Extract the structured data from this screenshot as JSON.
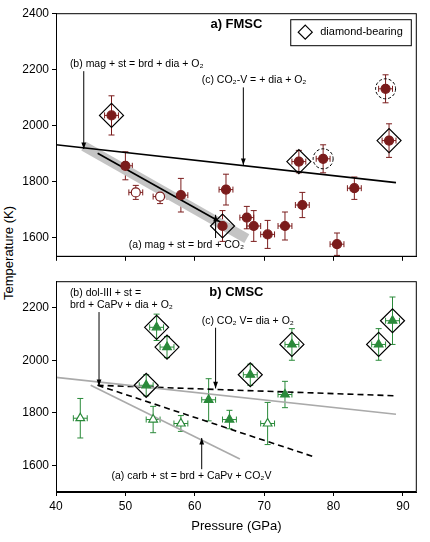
{
  "chart_data": [
    {
      "type": "scatter",
      "title": "a) FMSC",
      "y_label": "Temperature (K)",
      "xlim": [
        40,
        92
      ],
      "xticks": [
        40,
        50,
        60,
        70,
        80,
        90
      ],
      "ylim": [
        1530,
        2400
      ],
      "yticks": [
        1600,
        1800,
        2000,
        2200,
        2400
      ],
      "grid": false,
      "tick_labels": "y",
      "legend": "upper right",
      "series": [
        {
          "type": "line",
          "line_style": "band",
          "color": "#c4c4c4",
          "x": [
            44,
            67.5
          ],
          "y": [
            1925,
            1595
          ]
        },
        {
          "type": "line",
          "line_style": "solid",
          "color": "#000000",
          "x": [
            46,
            64
          ],
          "y": [
            1900,
            1650
          ]
        },
        {
          "type": "line",
          "line_style": "solid",
          "color": "#000000",
          "x": [
            40,
            89
          ],
          "y": [
            1930,
            1795
          ]
        },
        {
          "name": "diamond-bearing",
          "marker": "diamond-open",
          "color": "#000000",
          "x": [
            48,
            64,
            75,
            88
          ],
          "y": [
            2035,
            1640,
            1870,
            1945
          ]
        },
        {
          "marker": "circle-dashed",
          "color": "#000000",
          "x": [
            78.5,
            87.5
          ],
          "y": [
            1880,
            2130
          ]
        },
        {
          "marker": "circle",
          "color": "#7b1c1c",
          "x": [
            48,
            50,
            58,
            64,
            64.5,
            67.5,
            68.5,
            70.5,
            73,
            75,
            75.5,
            78.5,
            80.5,
            83,
            87.5,
            88
          ],
          "y": [
            2035,
            1855,
            1750,
            1640,
            1770,
            1670,
            1640,
            1610,
            1640,
            1870,
            1715,
            1880,
            1575,
            1775,
            2130,
            1945
          ],
          "xerr": [
            1,
            1,
            1,
            1,
            1,
            1,
            1,
            1,
            1,
            1,
            1,
            1,
            1,
            1,
            1,
            1
          ],
          "yerr": [
            70,
            50,
            60,
            55,
            55,
            40,
            55,
            50,
            50,
            40,
            45,
            50,
            40,
            40,
            50,
            60
          ]
        },
        {
          "marker": "circle-open",
          "color": "#7b1c1c",
          "x": [
            51.5,
            55
          ],
          "y": [
            1760,
            1745
          ],
          "xerr": [
            1,
            1
          ],
          "yerr": [
            25,
            25
          ]
        }
      ],
      "annotations": [
        {
          "text": "(b) mag + st = brd + dia + O₂",
          "x": 42,
          "y": 2218,
          "arrow_x": 44,
          "arrow_y": 1915
        },
        {
          "text": "(c) CO₂-V = + dia + O₂",
          "x": 61,
          "y": 2160,
          "arrow_x": 67,
          "arrow_y": 1858
        },
        {
          "text": "(a) mag + st = brd + CO₂",
          "x": 50.5,
          "y": 1572,
          "arrow_x": 63,
          "arrow_y": 1680
        }
      ]
    },
    {
      "type": "scatter",
      "title": "b) CMSC",
      "x_label": "Pressure (GPa)",
      "xlim": [
        40,
        92
      ],
      "xticks": [
        40,
        50,
        60,
        70,
        80,
        90
      ],
      "ylim": [
        1500,
        2300
      ],
      "yticks": [
        1600,
        1800,
        2000,
        2200
      ],
      "grid": false,
      "series": [
        {
          "type": "line",
          "line_style": "solid",
          "color": "#aaaaaa",
          "x": [
            40,
            89
          ],
          "y": [
            1935,
            1795
          ]
        },
        {
          "type": "line",
          "line_style": "solid",
          "color": "#aaaaaa",
          "x": [
            45,
            66.5
          ],
          "y": [
            1905,
            1625
          ]
        },
        {
          "type": "line",
          "line_style": "dashed",
          "color": "#000000",
          "x": [
            46,
            89
          ],
          "y": [
            1905,
            1865
          ]
        },
        {
          "type": "line",
          "line_style": "dashed",
          "color": "#000000",
          "x": [
            46,
            77
          ],
          "y": [
            1905,
            1635
          ]
        },
        {
          "marker": "diamond-open",
          "color": "#000000",
          "x": [
            53,
            54.5,
            56,
            68,
            74,
            86.5,
            88.5
          ],
          "y": [
            1905,
            2125,
            2050,
            1945,
            2060,
            2060,
            2150
          ]
        },
        {
          "marker": "triangle",
          "color": "#2a8a3a",
          "x": [
            53,
            54.5,
            56,
            62,
            65,
            68,
            73,
            74,
            86.5,
            88.5
          ],
          "y": [
            1905,
            2125,
            2050,
            1850,
            1775,
            1945,
            1870,
            2060,
            2060,
            2150
          ],
          "xerr": [
            1,
            1,
            1,
            1,
            1,
            1,
            1,
            1,
            1,
            1
          ],
          "yerr": [
            40,
            50,
            40,
            80,
            35,
            40,
            50,
            60,
            60,
            90
          ]
        },
        {
          "marker": "triangle-open",
          "color": "#2a8a3a",
          "x": [
            43.5,
            54,
            58,
            70.5
          ],
          "y": [
            1780,
            1775,
            1760,
            1760
          ],
          "xerr": [
            1,
            1,
            1,
            1
          ],
          "yerr": [
            75,
            50,
            30,
            80
          ]
        }
      ],
      "annotations": [
        {
          "text": "(b) dol-III + st =\nbrd + CaPv + dia + O₂",
          "x": 42,
          "y": 2255,
          "arrow_x": 46.2,
          "arrow_y": 1902
        },
        {
          "text": "(c) CO₂ V= dia + O₂",
          "x": 61,
          "y": 2150,
          "arrow_x": 63,
          "arrow_y": 1893
        },
        {
          "text": "(a) carb + st = brd + CaPv + CO₂V",
          "x": 48,
          "y": 1560,
          "arrow_x": 61,
          "arrow_y": 1705
        }
      ]
    }
  ]
}
